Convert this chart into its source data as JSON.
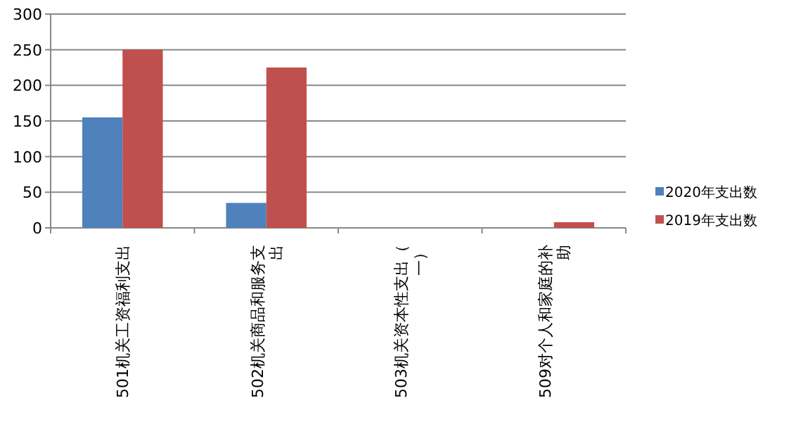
{
  "chart_data": {
    "type": "bar",
    "categories": [
      "501机关工资福利支出",
      "502机关商品和服务支出",
      "503机关资本性支出（一）",
      "509对个人和家庭的补助"
    ],
    "series": [
      {
        "name": "2020年支出数",
        "color": "#4f81bd",
        "values": [
          155,
          35,
          0,
          0
        ]
      },
      {
        "name": "2019年支出数",
        "color": "#c0504d",
        "values": [
          250,
          225,
          0,
          8
        ]
      }
    ],
    "ylim": [
      0,
      300
    ],
    "yticks": [
      0,
      50,
      100,
      150,
      200,
      250,
      300
    ],
    "grid": "y",
    "legend": "right"
  }
}
